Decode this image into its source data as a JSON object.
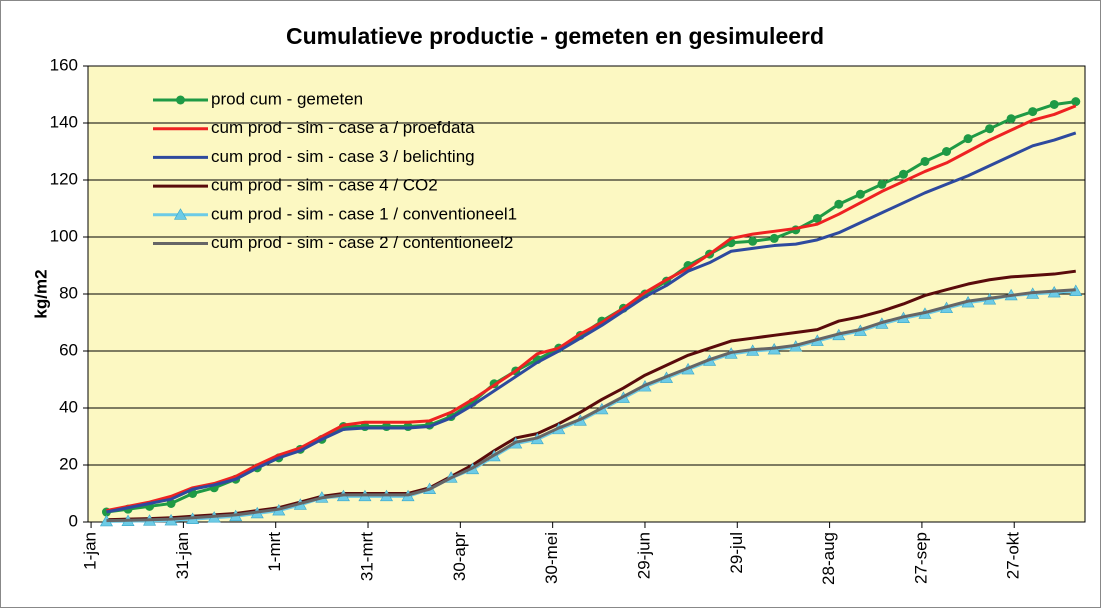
{
  "chart_data": {
    "type": "line",
    "title": "Cumulatieve productie - gemeten en gesimuleerd",
    "y_label": "kg/m2",
    "x": [
      5,
      12,
      19,
      26,
      33,
      40,
      47,
      54,
      61,
      68,
      75,
      82,
      89,
      96,
      103,
      110,
      117,
      124,
      131,
      138,
      145,
      152,
      159,
      166,
      173,
      180,
      187,
      194,
      201,
      208,
      215,
      222,
      229,
      236,
      243,
      250,
      257,
      264,
      271,
      278,
      285,
      292,
      299,
      306,
      313,
      320
    ],
    "xlim": [
      -1,
      323
    ],
    "xticks": [
      {
        "value": 0,
        "label": "1-jan"
      },
      {
        "value": 30,
        "label": "31-jan"
      },
      {
        "value": 60,
        "label": "1-mrt"
      },
      {
        "value": 90,
        "label": "31-mrt"
      },
      {
        "value": 120,
        "label": "30-apr"
      },
      {
        "value": 150,
        "label": "30-mei"
      },
      {
        "value": 180,
        "label": "29-jun"
      },
      {
        "value": 210,
        "label": "29-jul"
      },
      {
        "value": 240,
        "label": "28-aug"
      },
      {
        "value": 270,
        "label": "27-sep"
      },
      {
        "value": 300,
        "label": "27-okt"
      }
    ],
    "ylim": [
      0,
      160
    ],
    "yticks": [
      0,
      20,
      40,
      60,
      80,
      100,
      120,
      140,
      160
    ],
    "grid": true,
    "legend": "upper left",
    "series": [
      {
        "name": "prod cum - gemeten",
        "color": "#1f9a45",
        "marker": "circle",
        "values": [
          3.5,
          4.5,
          5.5,
          6.5,
          10,
          12,
          15,
          19,
          22.5,
          25.5,
          29,
          33.5,
          33.5,
          33.5,
          33.5,
          34,
          37,
          42,
          48.5,
          53,
          57,
          61,
          65.5,
          70.5,
          75,
          80,
          84.5,
          90,
          94,
          98,
          98.5,
          99.5,
          102.5,
          106.5,
          111.5,
          115,
          118.5,
          122,
          126.5,
          130,
          134.5,
          138,
          141.5,
          144,
          146.5,
          147.5
        ]
      },
      {
        "name": "cum prod - sim - case a / proefdata",
        "color": "#ee2222",
        "values": [
          4,
          5.5,
          7,
          9,
          12,
          13.5,
          16,
          20,
          23.5,
          26,
          30,
          34,
          35,
          35,
          35,
          35.5,
          38.5,
          43,
          48,
          53,
          59,
          61,
          66,
          70,
          75,
          80.5,
          85,
          89,
          94,
          99.5,
          101,
          102,
          103,
          104.5,
          108,
          112,
          116,
          119.5,
          123,
          126,
          130,
          134,
          137.5,
          141,
          143,
          146
        ]
      },
      {
        "name": "cum prod - sim - case 3 / belichting",
        "color": "#2e4a9e",
        "values": [
          3.5,
          5,
          6.5,
          8,
          11.5,
          13,
          15,
          19,
          22.5,
          25,
          29,
          32.5,
          33,
          33,
          33,
          33.5,
          36.5,
          41,
          46,
          51,
          56,
          60,
          64.5,
          69,
          74,
          79,
          83,
          88,
          91,
          95,
          96,
          97,
          97.5,
          99,
          101.5,
          105,
          108.5,
          112,
          115.5,
          118.5,
          121.5,
          125,
          128.5,
          132,
          134,
          136.5
        ]
      },
      {
        "name": "cum prod - sim - case 4 / CO2",
        "color": "#5a0b0b",
        "values": [
          0.8,
          1,
          1.2,
          1.5,
          2,
          2.5,
          3,
          4,
          5,
          7,
          9,
          10,
          10,
          10,
          10,
          12,
          16,
          20,
          25,
          29.5,
          31,
          34.5,
          38.5,
          43,
          47,
          51.5,
          55,
          58.5,
          61,
          63.5,
          64.5,
          65.5,
          66.5,
          67.5,
          70.5,
          72,
          74,
          76.5,
          79.5,
          81.5,
          83.5,
          85,
          86,
          86.5,
          87,
          88
        ]
      },
      {
        "name": "cum prod - sim - case 1 / conventioneel1",
        "color": "#6ccbe6",
        "marker": "triangle",
        "values": [
          0.2,
          0.3,
          0.4,
          0.5,
          1,
          1.5,
          2,
          3,
          4,
          6,
          8.5,
          9,
          9,
          9,
          9,
          11.5,
          15.5,
          18.5,
          23,
          27.5,
          29,
          32.5,
          35.5,
          39.5,
          43.5,
          47.5,
          50.5,
          53.5,
          56.5,
          59,
          60,
          60.5,
          61.5,
          63.5,
          65.5,
          67,
          69.5,
          71.5,
          73,
          75,
          77,
          78,
          79.5,
          80,
          80.5,
          81
        ]
      },
      {
        "name": "cum prod - sim - case 2 / contentioneel2",
        "color": "#666666",
        "values": [
          0.5,
          0.6,
          0.8,
          1,
          1.5,
          2,
          2.5,
          3.5,
          4.5,
          6.5,
          8.5,
          9.5,
          9.5,
          9.5,
          9.5,
          11.5,
          15.5,
          19,
          23.5,
          28,
          29.5,
          33,
          36,
          40,
          44,
          48,
          51,
          54,
          57,
          59.5,
          60.5,
          61,
          62,
          64,
          66,
          67.5,
          70,
          72,
          73.5,
          75.5,
          77.5,
          78.5,
          79.5,
          80.5,
          81,
          81.5
        ]
      }
    ]
  }
}
